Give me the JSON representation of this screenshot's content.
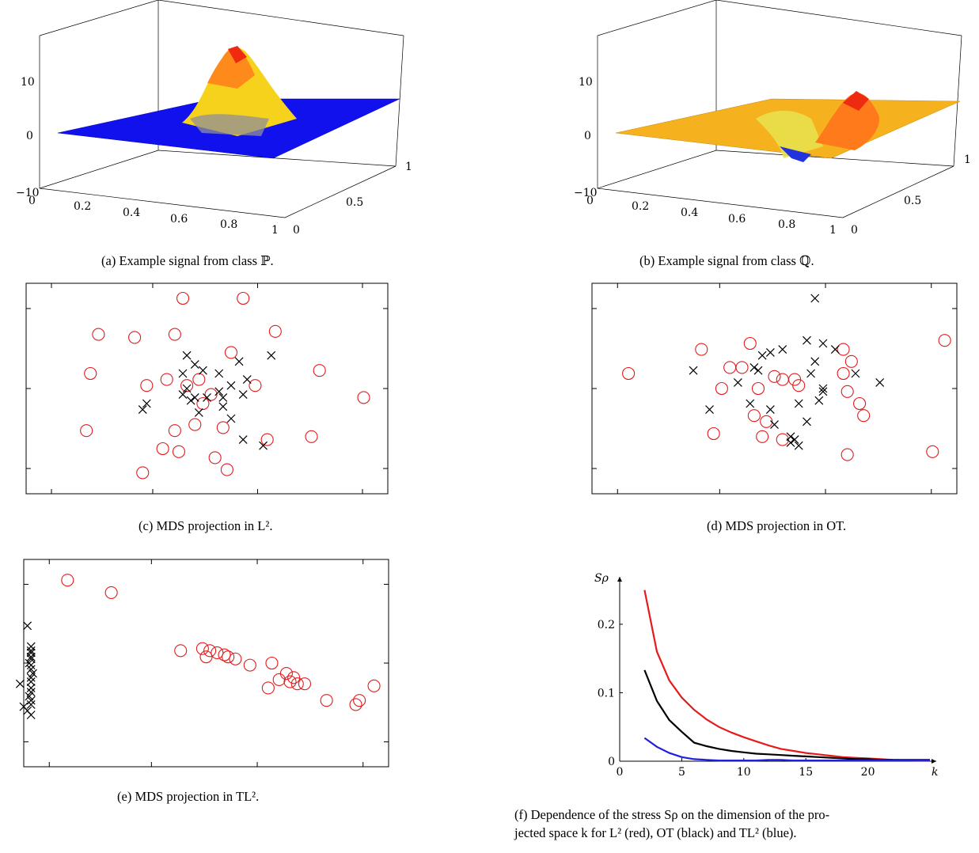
{
  "captions": {
    "a": "(a) Example signal from class ℙ.",
    "b": "(b) Example signal from class ℚ.",
    "c": "(c) MDS projection in L².",
    "d": "(d) MDS projection in OT.",
    "e": "(e) MDS projection in TL².",
    "f_line1": "(f) Dependence of the stress Sρ on the dimension of the pro-",
    "f_line2": "jected space k for L² (red), OT (black) and TL² (blue)."
  },
  "colors": {
    "red": "#e41a1c",
    "black": "#000000",
    "blue": "#1f1fe0",
    "surface_blue": "#1111ee",
    "surface_orange": "#f6b21e"
  },
  "chart_data": [
    {
      "id": "a",
      "type": "surface3d",
      "x_ticks": [
        "0",
        "0.2",
        "0.4",
        "0.6",
        "0.8",
        "1"
      ],
      "y_ticks": [
        "0",
        "0.5",
        "1"
      ],
      "z_ticks": [
        "−10",
        "0",
        "10"
      ],
      "zlim": [
        -10,
        10
      ],
      "description_values": {
        "peak_height": 14,
        "peak_center": [
          0.55,
          0.6
        ]
      }
    },
    {
      "id": "b",
      "type": "surface3d",
      "x_ticks": [
        "0",
        "0.2",
        "0.4",
        "0.6",
        "0.8",
        "1"
      ],
      "y_ticks": [
        "0",
        "0.5",
        "1"
      ],
      "z_ticks": [
        "−10",
        "0",
        "10"
      ],
      "zlim": [
        -10,
        10
      ],
      "description_values": {
        "peak_height": 10,
        "trough_depth": -8
      }
    },
    {
      "id": "c",
      "type": "scatter",
      "xlim": [
        -4.5,
        4.5
      ],
      "ylim": [
        -3.5,
        3.5
      ],
      "series": [
        {
          "marker": "circle",
          "color": "red",
          "points": [
            [
              -2.7,
              1.8
            ],
            [
              -2.9,
              0.5
            ],
            [
              -3.0,
              -1.4
            ],
            [
              -1.8,
              1.7
            ],
            [
              -0.6,
              3.0
            ],
            [
              0.9,
              3.0
            ],
            [
              1.7,
              1.9
            ],
            [
              2.8,
              0.6
            ],
            [
              3.9,
              -0.3
            ],
            [
              2.6,
              -1.6
            ],
            [
              1.5,
              -1.7
            ],
            [
              0.2,
              -2.3
            ],
            [
              -0.8,
              -1.4
            ],
            [
              -0.7,
              -2.1
            ],
            [
              -1.6,
              -2.8
            ],
            [
              -0.5,
              0.1
            ],
            [
              -0.3,
              -1.2
            ],
            [
              0.1,
              -0.2
            ],
            [
              -0.1,
              -0.5
            ],
            [
              0.4,
              -1.3
            ],
            [
              0.6,
              1.2
            ],
            [
              1.2,
              0.1
            ],
            [
              -1.0,
              0.3
            ],
            [
              0.5,
              -2.7
            ],
            [
              -1.5,
              0.1
            ],
            [
              -1.1,
              -2.0
            ],
            [
              -0.2,
              0.3
            ],
            [
              -0.8,
              1.8
            ]
          ]
        },
        {
          "marker": "x",
          "color": "black",
          "points": [
            [
              -0.5,
              1.1
            ],
            [
              -0.3,
              0.8
            ],
            [
              -0.1,
              0.6
            ],
            [
              0.3,
              0.5
            ],
            [
              0.8,
              0.9
            ],
            [
              1.6,
              1.1
            ],
            [
              -0.5,
              0.0
            ],
            [
              -0.3,
              -0.3
            ],
            [
              -0.6,
              -0.2
            ],
            [
              0.0,
              -0.3
            ],
            [
              0.3,
              -0.1
            ],
            [
              0.6,
              0.1
            ],
            [
              0.9,
              -0.2
            ],
            [
              1.0,
              0.3
            ],
            [
              0.4,
              -0.6
            ],
            [
              0.6,
              -1.0
            ],
            [
              -1.5,
              -0.5
            ],
            [
              -1.6,
              -0.7
            ],
            [
              -0.4,
              -0.4
            ],
            [
              -0.2,
              -0.8
            ],
            [
              0.9,
              -1.7
            ],
            [
              1.4,
              -1.9
            ],
            [
              -0.6,
              0.5
            ],
            [
              0.4,
              -0.3
            ]
          ]
        }
      ]
    },
    {
      "id": "d",
      "type": "scatter",
      "xlim": [
        -4.5,
        4.5
      ],
      "ylim": [
        -3.5,
        3.5
      ],
      "series": [
        {
          "marker": "circle",
          "color": "red",
          "points": [
            [
              -3.6,
              0.5
            ],
            [
              -1.8,
              1.3
            ],
            [
              -1.5,
              -1.5
            ],
            [
              -1.1,
              0.7
            ],
            [
              -1.3,
              0.0
            ],
            [
              -0.6,
              1.5
            ],
            [
              -0.8,
              0.7
            ],
            [
              -0.5,
              -0.9
            ],
            [
              -0.2,
              -1.1
            ],
            [
              0.0,
              0.4
            ],
            [
              -0.4,
              0.0
            ],
            [
              0.5,
              0.3
            ],
            [
              0.6,
              0.1
            ],
            [
              -0.3,
              -1.6
            ],
            [
              0.2,
              -1.7
            ],
            [
              1.7,
              1.3
            ],
            [
              1.7,
              0.5
            ],
            [
              1.9,
              0.9
            ],
            [
              1.8,
              -0.1
            ],
            [
              2.1,
              -0.5
            ],
            [
              2.2,
              -0.9
            ],
            [
              1.8,
              -2.2
            ],
            [
              4.2,
              1.6
            ],
            [
              3.9,
              -2.1
            ],
            [
              0.2,
              0.3
            ]
          ]
        },
        {
          "marker": "x",
          "color": "black",
          "points": [
            [
              -2.0,
              0.6
            ],
            [
              -0.9,
              0.2
            ],
            [
              -0.5,
              0.7
            ],
            [
              -0.3,
              1.1
            ],
            [
              -0.1,
              1.2
            ],
            [
              0.2,
              1.3
            ],
            [
              -0.4,
              0.6
            ],
            [
              1.0,
              0.9
            ],
            [
              1.2,
              1.5
            ],
            [
              1.5,
              1.3
            ],
            [
              0.8,
              1.6
            ],
            [
              1.0,
              3.0
            ],
            [
              0.9,
              0.5
            ],
            [
              1.2,
              0.0
            ],
            [
              1.2,
              -0.1
            ],
            [
              0.6,
              -0.5
            ],
            [
              0.8,
              -1.1
            ],
            [
              0.4,
              -1.6
            ],
            [
              0.4,
              -1.8
            ],
            [
              1.1,
              -0.4
            ],
            [
              0.0,
              -1.2
            ],
            [
              -1.6,
              -0.7
            ],
            [
              -0.6,
              -0.5
            ],
            [
              2.0,
              0.5
            ],
            [
              2.6,
              0.2
            ],
            [
              0.6,
              -1.9
            ],
            [
              0.5,
              -1.7
            ],
            [
              -0.1,
              -0.7
            ]
          ]
        }
      ]
    },
    {
      "id": "e",
      "type": "scatter",
      "xlim": [
        0,
        10
      ],
      "ylim": [
        0,
        10
      ],
      "series": [
        {
          "marker": "circle",
          "color": "red",
          "points": [
            [
              1.2,
              9.0
            ],
            [
              2.4,
              8.4
            ],
            [
              4.3,
              5.6
            ],
            [
              4.9,
              5.7
            ],
            [
              5.1,
              5.6
            ],
            [
              5.3,
              5.5
            ],
            [
              5.5,
              5.4
            ],
            [
              5.6,
              5.3
            ],
            [
              5.8,
              5.2
            ],
            [
              5.0,
              5.3
            ],
            [
              6.2,
              4.9
            ],
            [
              6.8,
              5.0
            ],
            [
              7.2,
              4.5
            ],
            [
              7.4,
              4.3
            ],
            [
              7.0,
              4.2
            ],
            [
              7.3,
              4.1
            ],
            [
              7.5,
              4.0
            ],
            [
              7.7,
              4.0
            ],
            [
              6.7,
              3.8
            ],
            [
              8.3,
              3.2
            ],
            [
              9.1,
              3.0
            ],
            [
              9.2,
              3.2
            ],
            [
              9.6,
              3.9
            ]
          ]
        },
        {
          "marker": "x",
          "color": "black",
          "points": [
            [
              0.1,
              6.8
            ],
            [
              0.2,
              5.8
            ],
            [
              0.2,
              5.6
            ],
            [
              0.2,
              5.5
            ],
            [
              0.2,
              5.3
            ],
            [
              0.2,
              5.2
            ],
            [
              0.15,
              5.0
            ],
            [
              0.2,
              4.9
            ],
            [
              0.2,
              4.7
            ],
            [
              0.25,
              4.5
            ],
            [
              0.2,
              4.3
            ],
            [
              0.2,
              4.1
            ],
            [
              -0.1,
              4.0
            ],
            [
              0.2,
              3.8
            ],
            [
              0.2,
              3.6
            ],
            [
              0.15,
              3.4
            ],
            [
              0.2,
              3.2
            ],
            [
              0.2,
              3.0
            ],
            [
              0.1,
              2.7
            ],
            [
              0.2,
              2.5
            ],
            [
              0.0,
              2.9
            ]
          ]
        }
      ]
    },
    {
      "id": "f",
      "type": "line",
      "xlim": [
        0,
        25
      ],
      "ylim": [
        0,
        0.26
      ],
      "x_ticks": [
        "0",
        "5",
        "10",
        "15",
        "20"
      ],
      "x_tick_values": [
        0,
        5,
        10,
        15,
        20
      ],
      "y_ticks": [
        "0",
        "0.1",
        "0.2"
      ],
      "y_tick_values": [
        0,
        0.1,
        0.2
      ],
      "xlabel": "k",
      "ylabel": "Sρ",
      "series": [
        {
          "color": "red",
          "x": [
            2,
            3,
            4,
            5,
            6,
            7,
            8,
            9,
            10,
            11,
            12,
            13,
            14,
            15,
            16,
            17,
            18,
            19,
            20,
            21,
            22,
            23,
            24,
            25
          ],
          "y": [
            0.25,
            0.16,
            0.118,
            0.093,
            0.075,
            0.061,
            0.05,
            0.042,
            0.035,
            0.029,
            0.023,
            0.018,
            0.015,
            0.012,
            0.01,
            0.008,
            0.006,
            0.005,
            0.004,
            0.003,
            0.002,
            0.0015,
            0.001,
            0.001
          ]
        },
        {
          "color": "black",
          "x": [
            2,
            3,
            4,
            5,
            6,
            7,
            8,
            9,
            10,
            11,
            12,
            13,
            14,
            15,
            16,
            17,
            18,
            19,
            20,
            21,
            22,
            23,
            24,
            25
          ],
          "y": [
            0.133,
            0.088,
            0.06,
            0.043,
            0.027,
            0.022,
            0.018,
            0.015,
            0.013,
            0.011,
            0.01,
            0.009,
            0.008,
            0.007,
            0.006,
            0.005,
            0.004,
            0.003,
            0.003,
            0.002,
            0.002,
            0.002,
            0.002,
            0.002
          ]
        },
        {
          "color": "blue",
          "x": [
            2,
            3,
            4,
            5,
            6,
            7,
            8,
            9,
            10,
            11,
            12,
            13,
            14,
            15,
            16,
            17,
            18,
            19,
            20,
            21,
            22,
            23,
            24,
            25
          ],
          "y": [
            0.034,
            0.021,
            0.012,
            0.006,
            0.003,
            0.002,
            0.001,
            0.001,
            0.001,
            0.001,
            0.002,
            0.002,
            0.001,
            0.001,
            0.001,
            0.001,
            0.001,
            0.001,
            0.001,
            0.001,
            0.001,
            0.001,
            0.001,
            0.001
          ]
        }
      ]
    }
  ]
}
